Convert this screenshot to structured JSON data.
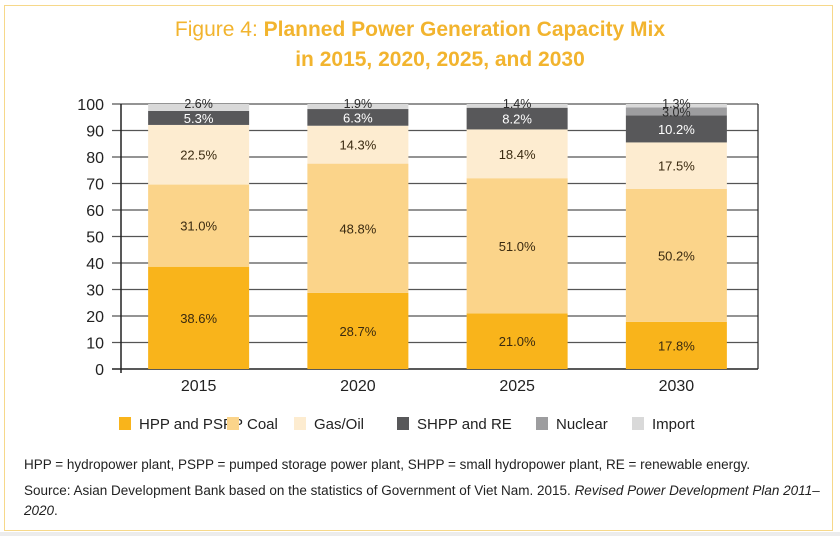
{
  "figure": {
    "label": "Figure 4:",
    "title_line1": "Planned Power Generation Capacity Mix",
    "title_line2": "in 2015, 2020, 2025, and 2030"
  },
  "notes": {
    "abbreviations": "HPP = hydropower plant, PSPP = pumped storage power plant, SHPP = small hydropower plant, RE = renewable energy.",
    "source_prefix": "Source: Asian Development Bank based on the statistics of Government of Viet Nam. 2015. ",
    "source_title": "Revised Power Development Plan 2011–2020",
    "source_suffix": "."
  },
  "chart_data": {
    "type": "bar",
    "stacked": true,
    "title": "Planned Power Generation Capacity Mix in 2015, 2020, 2025, and 2030",
    "xlabel": "",
    "ylabel": "",
    "ylim": [
      0,
      100
    ],
    "yticks": [
      0,
      10,
      20,
      30,
      40,
      50,
      60,
      70,
      80,
      90,
      100
    ],
    "grid": true,
    "legend_position": "bottom",
    "categories": [
      "2015",
      "2020",
      "2025",
      "2030"
    ],
    "series": [
      {
        "name": "HPP and PSPP",
        "color": "#f9b41b",
        "label_color": "#3a2a10",
        "values": [
          38.6,
          28.7,
          21.0,
          17.8
        ]
      },
      {
        "name": "Coal",
        "color": "#fbd48a",
        "label_color": "#3a2a10",
        "values": [
          31.0,
          48.8,
          51.0,
          50.2
        ]
      },
      {
        "name": "Gas/Oil",
        "color": "#fdecd0",
        "label_color": "#3a2a10",
        "values": [
          22.5,
          14.3,
          18.4,
          17.5
        ]
      },
      {
        "name": "SHPP and RE",
        "color": "#58585a",
        "label_color": "#ffffff",
        "values": [
          5.3,
          6.3,
          8.2,
          10.2
        ]
      },
      {
        "name": "Nuclear",
        "color": "#9d9d9f",
        "label_color": "#2a2a2a",
        "values": [
          0,
          0,
          0,
          3.0
        ]
      },
      {
        "name": "Import",
        "color": "#d9d9d9",
        "label_color": "#2a2a2a",
        "values": [
          2.6,
          1.9,
          1.4,
          1.3
        ]
      }
    ],
    "data_labels": [
      [
        "38.6%",
        "28.7%",
        "21.0%",
        "17.8%"
      ],
      [
        "31.0%",
        "48.8%",
        "51.0%",
        "50.2%"
      ],
      [
        "22.5%",
        "14.3%",
        "18.4%",
        "17.5%"
      ],
      [
        "5.3%",
        "6.3%",
        "8.2%",
        "10.2%"
      ],
      [
        "",
        "",
        "",
        "3.0%"
      ],
      [
        "2.6%",
        "1.9%",
        "1.4%",
        "1.3%"
      ]
    ]
  }
}
